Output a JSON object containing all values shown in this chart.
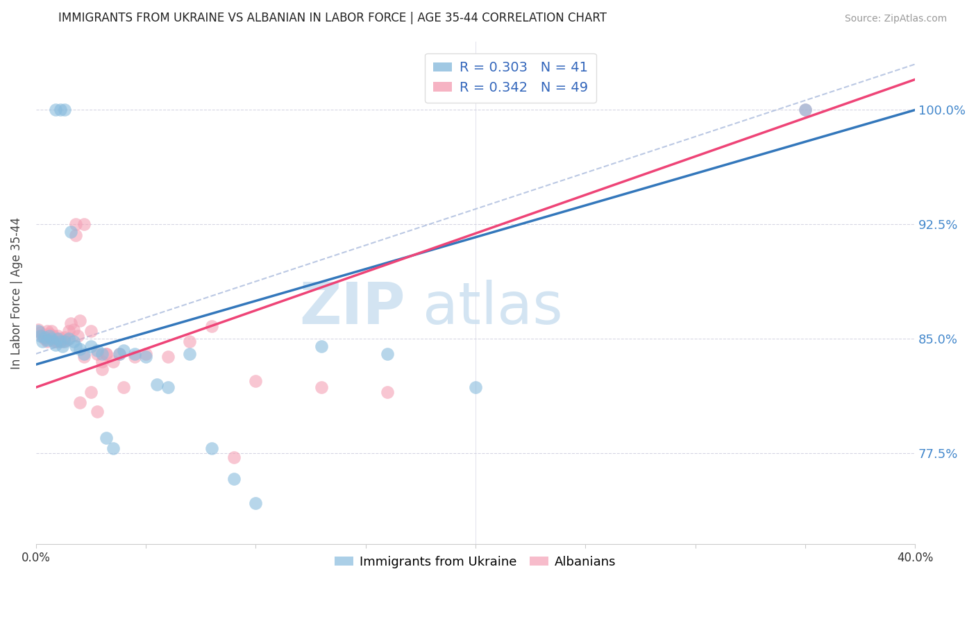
{
  "title": "IMMIGRANTS FROM UKRAINE VS ALBANIAN IN LABOR FORCE | AGE 35-44 CORRELATION CHART",
  "source": "Source: ZipAtlas.com",
  "ylabel": "In Labor Force | Age 35-44",
  "ytick_labels": [
    "100.0%",
    "92.5%",
    "85.0%",
    "77.5%"
  ],
  "ytick_values": [
    1.0,
    0.925,
    0.85,
    0.775
  ],
  "xmin": 0.0,
  "xmax": 0.4,
  "ymin": 0.715,
  "ymax": 1.045,
  "ukraine_R": 0.303,
  "ukraine_N": 41,
  "albanian_R": 0.342,
  "albanian_N": 49,
  "ukraine_color": "#88bbdd",
  "albanian_color": "#f4a0b5",
  "ukraine_line_color": "#3377bb",
  "albanian_line_color": "#ee4477",
  "legend_label_ukraine": "Immigrants from Ukraine",
  "legend_label_albanian": "Albanians",
  "ukraine_line_x0": 0.0,
  "ukraine_line_y0": 0.833,
  "ukraine_line_x1": 0.4,
  "ukraine_line_y1": 1.0,
  "albanian_line_x0": 0.0,
  "albanian_line_y0": 0.818,
  "albanian_line_x1": 0.4,
  "albanian_line_y1": 1.02,
  "dash_line_x0": 0.0,
  "dash_line_y0": 0.84,
  "dash_line_x1": 0.4,
  "dash_line_y1": 1.03,
  "ukraine_x": [
    0.001,
    0.002,
    0.003,
    0.004,
    0.005,
    0.006,
    0.007,
    0.008,
    0.009,
    0.01,
    0.011,
    0.012,
    0.013,
    0.015,
    0.016,
    0.017,
    0.018,
    0.02,
    0.022,
    0.025,
    0.028,
    0.03,
    0.032,
    0.035,
    0.038,
    0.04,
    0.045,
    0.05,
    0.055,
    0.06,
    0.07,
    0.08,
    0.09,
    0.1,
    0.13,
    0.16,
    0.2,
    0.009,
    0.011,
    0.013,
    0.35
  ],
  "ukraine_y": [
    0.855,
    0.852,
    0.848,
    0.851,
    0.849,
    0.852,
    0.85,
    0.848,
    0.846,
    0.85,
    0.848,
    0.845,
    0.848,
    0.85,
    0.92,
    0.848,
    0.845,
    0.843,
    0.84,
    0.845,
    0.842,
    0.84,
    0.785,
    0.778,
    0.84,
    0.842,
    0.84,
    0.838,
    0.82,
    0.818,
    0.84,
    0.778,
    0.758,
    0.742,
    0.845,
    0.84,
    0.818,
    1.0,
    1.0,
    1.0,
    1.0
  ],
  "albanian_x": [
    0.001,
    0.002,
    0.003,
    0.004,
    0.005,
    0.005,
    0.006,
    0.007,
    0.007,
    0.008,
    0.009,
    0.009,
    0.01,
    0.01,
    0.011,
    0.012,
    0.013,
    0.014,
    0.015,
    0.016,
    0.017,
    0.018,
    0.019,
    0.02,
    0.022,
    0.025,
    0.028,
    0.03,
    0.032,
    0.035,
    0.038,
    0.04,
    0.045,
    0.05,
    0.06,
    0.07,
    0.08,
    0.09,
    0.1,
    0.13,
    0.16,
    0.018,
    0.02,
    0.022,
    0.025,
    0.028,
    0.03,
    0.032,
    0.35
  ],
  "albanian_y": [
    0.856,
    0.854,
    0.852,
    0.85,
    0.855,
    0.848,
    0.853,
    0.855,
    0.851,
    0.852,
    0.85,
    0.848,
    0.852,
    0.848,
    0.85,
    0.848,
    0.851,
    0.849,
    0.855,
    0.86,
    0.856,
    0.925,
    0.852,
    0.862,
    0.925,
    0.855,
    0.84,
    0.835,
    0.84,
    0.835,
    0.84,
    0.818,
    0.838,
    0.84,
    0.838,
    0.848,
    0.858,
    0.772,
    0.822,
    0.818,
    0.815,
    0.918,
    0.808,
    0.838,
    0.815,
    0.802,
    0.83,
    0.84,
    1.0
  ]
}
